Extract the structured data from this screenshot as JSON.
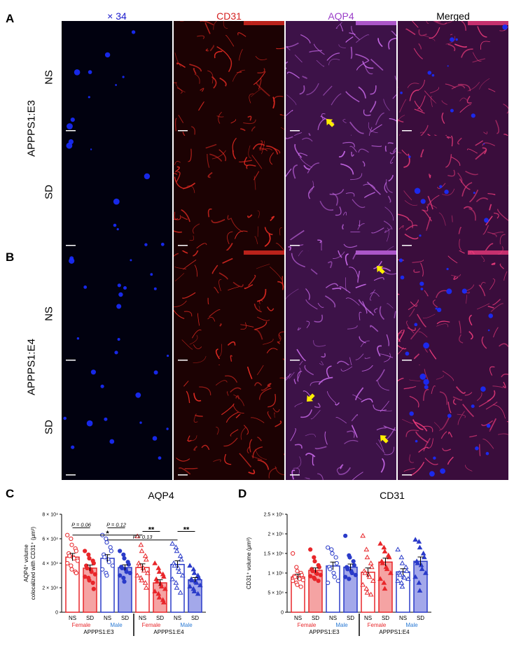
{
  "panels": {
    "A": "A",
    "B": "B",
    "C": "C",
    "D": "D"
  },
  "micrograph": {
    "columns": [
      {
        "label": "× 34",
        "color": "#1a1acc",
        "channel": "x34"
      },
      {
        "label": "CD31",
        "color": "#d42020",
        "channel": "cd31"
      },
      {
        "label": "AQP4",
        "color": "#9b3fc9",
        "channel": "aqp4"
      },
      {
        "label": "Merged",
        "color": "#000000",
        "channel": "merged"
      }
    ],
    "groups": [
      {
        "name": "APPPS1:E3",
        "rows": [
          "NS",
          "SD"
        ]
      },
      {
        "name": "APPPS1:E4",
        "rows": [
          "NS",
          "SD"
        ]
      }
    ],
    "arrow_color": "#ffee00"
  },
  "chart_data": [
    {
      "type": "bar",
      "title": "AQP4",
      "ylabel": "AQP4⁺ volume colocalized with CD31⁺ (μm³)",
      "ylabel_lines": [
        "AQP4⁺ volume",
        "colocalized with CD31⁺ (μm³)"
      ],
      "ylim": [
        0,
        80000
      ],
      "yticks": [
        0,
        20000,
        40000,
        60000,
        80000
      ],
      "ytick_labels": [
        "0",
        "2 × 10⁴",
        "4 × 10⁴",
        "6 × 10⁴",
        "8 × 10⁴"
      ],
      "categories": [
        "NS",
        "SD",
        "NS",
        "SD",
        "NS",
        "SD",
        "NS",
        "SD"
      ],
      "sex_labels": [
        "Female",
        "Male",
        "Female",
        "Male"
      ],
      "genotype_labels": [
        "APPPS1:E3",
        "APPPS1:E4"
      ],
      "bars": [
        {
          "mean": 45000,
          "sem": 3000,
          "style": "open",
          "color": "#e8262a",
          "marker": "circle",
          "points": [
            63000,
            60000,
            55000,
            52000,
            50000,
            48000,
            46000,
            45000,
            44000,
            42000,
            40000,
            38000,
            35000,
            33000,
            32000
          ]
        },
        {
          "mean": 36000,
          "sem": 2500,
          "style": "filled",
          "color": "#e8262a",
          "marker": "circle",
          "points": [
            50000,
            47000,
            44000,
            42000,
            40000,
            38000,
            36000,
            35000,
            33000,
            31000,
            29000,
            28000,
            26000,
            24000,
            19000
          ]
        },
        {
          "mean": 44000,
          "sem": 3000,
          "style": "open",
          "color": "#2a3bc9",
          "marker": "circle",
          "points": [
            63000,
            60000,
            57000,
            53000,
            50000,
            47000,
            45000,
            43000,
            41000,
            38000,
            35000,
            32000,
            30000
          ]
        },
        {
          "mean": 36500,
          "sem": 2200,
          "style": "filled",
          "color": "#2a3bc9",
          "marker": "circle",
          "points": [
            50000,
            47000,
            44000,
            41000,
            39000,
            37000,
            36000,
            35000,
            33000,
            32000,
            30000,
            28000,
            25000
          ]
        },
        {
          "mean": 36500,
          "sem": 3000,
          "style": "open",
          "color": "#e8262a",
          "marker": "triangle",
          "points": [
            62000,
            55000,
            50000,
            46000,
            43000,
            40000,
            38000,
            36000,
            34000,
            32000,
            30000,
            28000,
            26000,
            24000,
            20000
          ]
        },
        {
          "mean": 24000,
          "sem": 2500,
          "style": "filled",
          "color": "#e8262a",
          "marker": "triangle",
          "points": [
            40000,
            36000,
            33000,
            31000,
            29000,
            27000,
            25000,
            23000,
            21000,
            19000,
            17000,
            15000,
            12000,
            10000,
            8000
          ]
        },
        {
          "mean": 39000,
          "sem": 3000,
          "style": "open",
          "color": "#2a3bc9",
          "marker": "triangle",
          "points": [
            56000,
            53000,
            50000,
            46000,
            43000,
            40000,
            38000,
            36000,
            33000,
            30000,
            27000,
            24000,
            20000,
            16000
          ]
        },
        {
          "mean": 26500,
          "sem": 1800,
          "style": "filled",
          "color": "#2a3bc9",
          "marker": "triangle",
          "points": [
            38000,
            35000,
            32000,
            30000,
            28000,
            27000,
            26000,
            25000,
            24000,
            22000,
            21000,
            19000,
            17000,
            15000
          ]
        }
      ],
      "significance": [
        {
          "from": 0,
          "to": 1,
          "label": "P = 0.06",
          "y": 69000
        },
        {
          "from": 2,
          "to": 3,
          "label": "P = 0.12",
          "y": 69000
        },
        {
          "from": 0,
          "to": 4,
          "label": "*",
          "y": 63000
        },
        {
          "from": 2,
          "to": 6,
          "label": "P = 0.13",
          "y": 59000
        },
        {
          "from": 4,
          "to": 5,
          "label": "**",
          "y": 66000
        },
        {
          "from": 6,
          "to": 7,
          "label": "**",
          "y": 66000
        }
      ]
    },
    {
      "type": "bar",
      "title": "CD31",
      "ylabel": "CD31⁺ volume (μm³)",
      "ylim": [
        0,
        250000
      ],
      "yticks": [
        0,
        50000,
        100000,
        150000,
        200000,
        250000
      ],
      "ytick_labels": [
        "0",
        "5 × 10⁴",
        "1 × 10⁵",
        "1.5 × 10⁵",
        "2 × 10⁵",
        "2.5 × 10⁵"
      ],
      "categories": [
        "NS",
        "SD",
        "NS",
        "SD",
        "NS",
        "SD",
        "NS",
        "SD"
      ],
      "sex_labels": [
        "Female",
        "Male",
        "Female",
        "Male"
      ],
      "genotype_labels": [
        "APPPS1:E3",
        "APPPS1:E4"
      ],
      "bars": [
        {
          "mean": 90000,
          "sem": 7000,
          "style": "open",
          "color": "#e8262a",
          "marker": "circle",
          "points": [
            150000,
            115000,
            105000,
            100000,
            95000,
            92000,
            90000,
            88000,
            85000,
            82000,
            80000,
            75000,
            70000,
            65000
          ]
        },
        {
          "mean": 107000,
          "sem": 6000,
          "style": "filled",
          "color": "#e8262a",
          "marker": "circle",
          "points": [
            160000,
            140000,
            130000,
            120000,
            115000,
            110000,
            105000,
            100000,
            98000,
            95000,
            92000,
            88000,
            85000,
            80000
          ]
        },
        {
          "mean": 118000,
          "sem": 10000,
          "style": "open",
          "color": "#2a3bc9",
          "marker": "circle",
          "points": [
            165000,
            160000,
            150000,
            140000,
            125000,
            115000,
            110000,
            100000,
            90000,
            80000,
            75000
          ]
        },
        {
          "mean": 115000,
          "sem": 8000,
          "style": "filled",
          "color": "#2a3bc9",
          "marker": "circle",
          "points": [
            195000,
            145000,
            140000,
            130000,
            120000,
            115000,
            110000,
            105000,
            100000,
            95000,
            90000,
            85000
          ]
        },
        {
          "mean": 102000,
          "sem": 11000,
          "style": "open",
          "color": "#e8262a",
          "marker": "triangle",
          "points": [
            195000,
            160000,
            140000,
            125000,
            115000,
            105000,
            100000,
            95000,
            90000,
            80000,
            70000,
            60000,
            50000,
            45000
          ]
        },
        {
          "mean": 128000,
          "sem": 10000,
          "style": "filled",
          "color": "#e8262a",
          "marker": "triangle",
          "points": [
            175000,
            165000,
            155000,
            145000,
            140000,
            130000,
            125000,
            115000,
            110000,
            100000,
            85000,
            75000,
            60000
          ]
        },
        {
          "mean": 103000,
          "sem": 8000,
          "style": "open",
          "color": "#2a3bc9",
          "marker": "triangle",
          "points": [
            160000,
            140000,
            125000,
            115000,
            105000,
            100000,
            95000,
            90000,
            88000,
            85000,
            80000,
            75000,
            65000
          ]
        },
        {
          "mean": 130000,
          "sem": 11000,
          "style": "filled",
          "color": "#2a3bc9",
          "marker": "triangle",
          "points": [
            185000,
            180000,
            165000,
            150000,
            140000,
            130000,
            125000,
            120000,
            110000,
            100000,
            90000,
            75000,
            55000
          ]
        }
      ]
    }
  ]
}
